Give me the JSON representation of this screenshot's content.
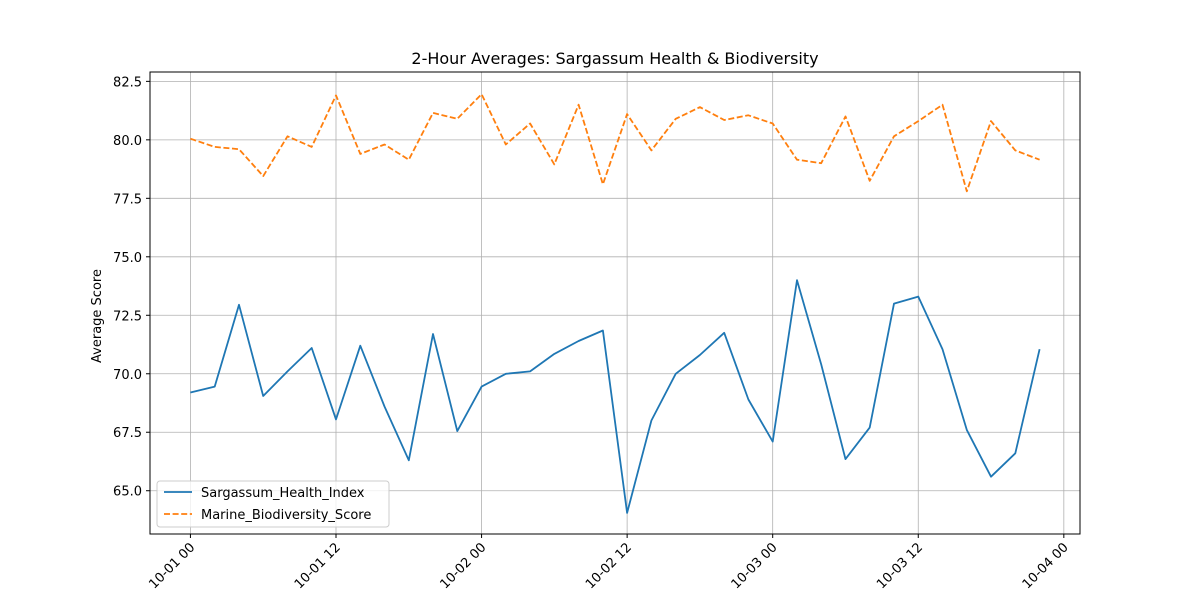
{
  "chart_data": {
    "type": "line",
    "title": "2-Hour Averages: Sargassum Health & Biodiversity",
    "xlabel": "",
    "ylabel": "Average Score",
    "x_start": "2023-10-01T00:00",
    "x_step_hours": 2,
    "x": [
      "10-01 00",
      "10-01 02",
      "10-01 04",
      "10-01 06",
      "10-01 08",
      "10-01 10",
      "10-01 12",
      "10-01 14",
      "10-01 16",
      "10-01 18",
      "10-01 20",
      "10-01 22",
      "10-02 00",
      "10-02 02",
      "10-02 04",
      "10-02 06",
      "10-02 08",
      "10-02 10",
      "10-02 12",
      "10-02 14",
      "10-02 16",
      "10-02 18",
      "10-02 20",
      "10-02 22",
      "10-03 00",
      "10-03 02",
      "10-03 04",
      "10-03 06",
      "10-03 08",
      "10-03 10",
      "10-03 12",
      "10-03 14",
      "10-03 16",
      "10-03 18",
      "10-03 20",
      "10-03 22"
    ],
    "xticks": [
      "10-01 00",
      "10-01 12",
      "10-02 00",
      "10-02 12",
      "10-03 00",
      "10-03 12",
      "10-04 00"
    ],
    "xlim": [
      "09-30 20:40",
      "10-04 01:20"
    ],
    "ylim": [
      63.15,
      82.9
    ],
    "yticks": [
      65.0,
      67.5,
      70.0,
      72.5,
      75.0,
      77.5,
      80.0,
      82.5
    ],
    "grid": true,
    "legend_position": "lower-left",
    "series": [
      {
        "name": "Sargassum_Health_Index",
        "color": "#1f77b4",
        "dash": "solid",
        "values": [
          69.2,
          69.45,
          72.95,
          69.05,
          70.1,
          71.1,
          68.05,
          71.2,
          68.6,
          66.3,
          71.7,
          67.55,
          69.45,
          70.0,
          70.1,
          70.85,
          71.4,
          71.85,
          64.05,
          68.0,
          70.0,
          70.8,
          71.75,
          68.9,
          67.1,
          74.0,
          70.4,
          66.35,
          67.7,
          73.0,
          73.3,
          71.05,
          67.6,
          65.6,
          66.6,
          71.05
        ]
      },
      {
        "name": "Marine_Biodiversity_Score",
        "color": "#ff7f0e",
        "dash": "dashed",
        "values": [
          80.05,
          79.7,
          79.6,
          78.45,
          80.15,
          79.7,
          81.9,
          79.4,
          79.8,
          79.15,
          81.15,
          80.9,
          81.95,
          79.8,
          80.7,
          78.95,
          81.5,
          78.1,
          81.1,
          79.55,
          80.9,
          81.4,
          80.85,
          81.05,
          80.7,
          79.15,
          79.0,
          81.0,
          78.25,
          80.15,
          80.8,
          81.5,
          77.8,
          80.8,
          79.55,
          79.15
        ]
      }
    ]
  }
}
